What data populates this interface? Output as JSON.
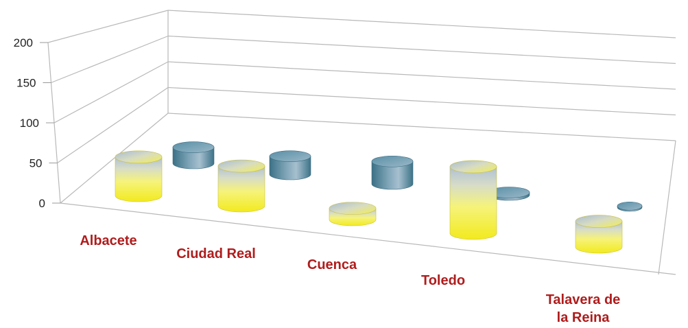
{
  "chart_data": {
    "type": "bar",
    "style": "3d-cylinder",
    "categories": [
      [
        "Albacete"
      ],
      [
        "Ciudad Real"
      ],
      [
        "Cuenca"
      ],
      [
        "Toledo"
      ],
      [
        "Talavera de",
        "la Reina"
      ]
    ],
    "series": [
      {
        "values": [
          96,
          99,
          28,
          166,
          64
        ],
        "color": "#f2f230"
      },
      {
        "values": [
          40,
          45,
          56,
          6,
          3
        ],
        "color": "#4f8aa0"
      }
    ],
    "ylim": [
      0,
      200
    ],
    "yticks": [
      "0",
      "50",
      "100",
      "150",
      "200"
    ],
    "grid": true,
    "legend": "none",
    "category_label_color": "#b01c1c"
  }
}
